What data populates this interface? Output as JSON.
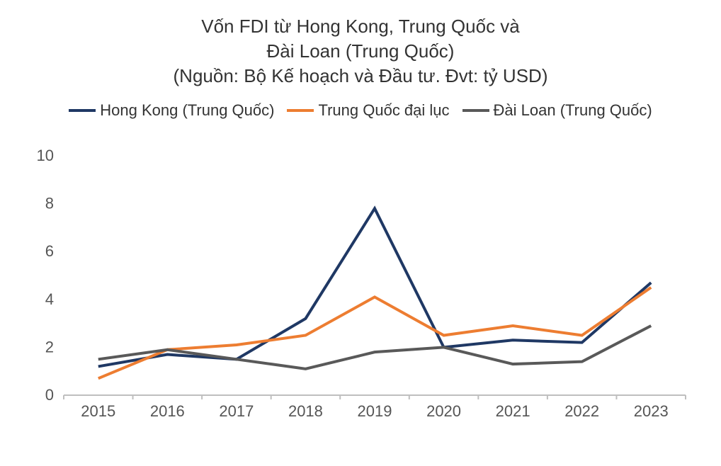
{
  "chart": {
    "type": "line",
    "title_lines": [
      "Vốn FDI từ Hong Kong, Trung Quốc và",
      "Đài Loan (Trung Quốc)",
      "(Nguồn: Bộ Kế hoạch và Đầu tư. Đvt: tỷ USD)"
    ],
    "title_fontsize": 26,
    "title_color": "#333333",
    "background_color": "#ffffff",
    "legend": {
      "fontsize": 22,
      "items": [
        {
          "label": "Hong Kong (Trung Quốc)",
          "color": "#1f3864"
        },
        {
          "label": "Trung Quốc đại lục",
          "color": "#ed7d31"
        },
        {
          "label": "Đài Loan (Trung Quốc)",
          "color": "#595959"
        }
      ]
    },
    "x_categories": [
      "2015",
      "2016",
      "2017",
      "2018",
      "2019",
      "2020",
      "2021",
      "2022",
      "2023"
    ],
    "ylim": [
      0,
      10
    ],
    "ytick_step": 2,
    "yticks": [
      0,
      2,
      4,
      6,
      8,
      10
    ],
    "yticks_labels": [
      "0",
      "2",
      "4",
      "6",
      "8",
      "10"
    ],
    "axis_color": "#bfbfbf",
    "tick_fontsize": 22,
    "tick_color": "#555555",
    "line_width": 4,
    "series": [
      {
        "name": "Hong Kong (Trung Quốc)",
        "color": "#1f3864",
        "values": [
          1.2,
          1.7,
          1.5,
          3.2,
          7.8,
          2.0,
          2.3,
          2.2,
          4.7
        ]
      },
      {
        "name": "Trung Quốc đại lục",
        "color": "#ed7d31",
        "values": [
          0.7,
          1.9,
          2.1,
          2.5,
          4.1,
          2.5,
          2.9,
          2.5,
          4.5
        ]
      },
      {
        "name": "Đài Loan (Trung Quốc)",
        "color": "#595959",
        "values": [
          1.5,
          1.9,
          1.5,
          1.1,
          1.8,
          2.0,
          1.3,
          1.4,
          2.9
        ]
      }
    ]
  }
}
